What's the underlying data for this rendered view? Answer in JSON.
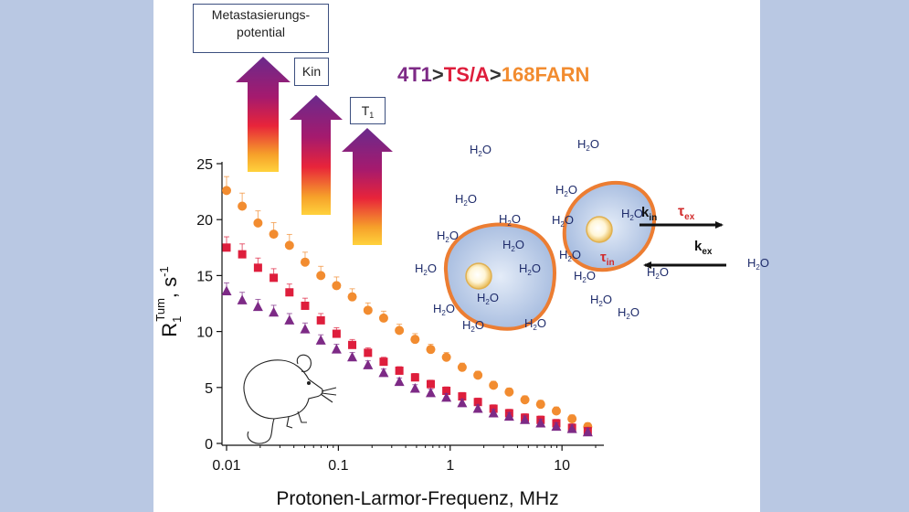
{
  "labels": {
    "metastasis_line1": "Metastasierungs-",
    "metastasis_line2": "potential",
    "kin_box": "Kin",
    "t1_box_main": "T",
    "t1_box_sub": "1"
  },
  "legend_order": {
    "part1": "4T1",
    "sep1": ">",
    "part2": "TS/A",
    "sep2": ">",
    "part3": "168FARN"
  },
  "colors": {
    "background": "#b9c8e3",
    "series_4t1": "#7d2a86",
    "series_tsa": "#de1e3c",
    "series_168farn": "#f28c30",
    "water": "#1f2c6b",
    "cell_border": "#ec7d32"
  },
  "diagram": {
    "water_label": "H2O",
    "water_main": "H",
    "water_sub": "2",
    "water_tail": "O",
    "k_in_main": "k",
    "k_in_sub": "in",
    "k_ex_main": "k",
    "k_ex_sub": "ex",
    "tau_ex_main": "τ",
    "tau_ex_sub": "ex",
    "tau_in_main": "τ",
    "tau_in_sub": "in"
  },
  "chart_data": {
    "type": "scatter",
    "xscale": "log",
    "xlabel": "Protonen-Larmor-Frequenz, MHz",
    "ylabel": {
      "main": "R",
      "sub": "1",
      "sup": "Tum",
      "unit": ", s",
      "unit_sup": "-1"
    },
    "xlim": [
      0.01,
      20
    ],
    "ylim": [
      0,
      25
    ],
    "x_ticks": [
      {
        "value": 0.01,
        "label": "0.01"
      },
      {
        "value": 0.1,
        "label": "0.1"
      },
      {
        "value": 1,
        "label": "1"
      },
      {
        "value": 10,
        "label": "10"
      }
    ],
    "y_ticks": [
      {
        "value": 0,
        "label": "0"
      },
      {
        "value": 5,
        "label": "5"
      },
      {
        "value": 10,
        "label": "10"
      },
      {
        "value": 15,
        "label": "15"
      },
      {
        "value": 20,
        "label": "20"
      },
      {
        "value": 25,
        "label": "25"
      }
    ],
    "series": [
      {
        "name": "168FARN",
        "marker": "circle",
        "color": "#f28c30",
        "x": [
          0.01,
          0.0138,
          0.0191,
          0.0264,
          0.0365,
          0.0504,
          0.0697,
          0.0963,
          0.133,
          0.184,
          0.254,
          0.351,
          0.485,
          0.67,
          0.925,
          1.28,
          1.77,
          2.44,
          3.37,
          4.66,
          6.44,
          8.9,
          12.3,
          17.0
        ],
        "y": [
          22.6,
          21.2,
          19.7,
          18.7,
          17.7,
          16.2,
          15.0,
          14.1,
          13.1,
          11.9,
          11.2,
          10.1,
          9.3,
          8.4,
          7.7,
          6.8,
          6.1,
          5.2,
          4.6,
          3.9,
          3.5,
          2.9,
          2.2,
          1.5
        ]
      },
      {
        "name": "TS/A",
        "marker": "square",
        "color": "#de1e3c",
        "x": [
          0.01,
          0.0138,
          0.0191,
          0.0264,
          0.0365,
          0.0504,
          0.0697,
          0.0963,
          0.133,
          0.184,
          0.254,
          0.351,
          0.485,
          0.67,
          0.925,
          1.28,
          1.77,
          2.44,
          3.37,
          4.66,
          6.44,
          8.9,
          12.3,
          17.0
        ],
        "y": [
          17.5,
          16.9,
          15.7,
          14.8,
          13.5,
          12.3,
          11.0,
          9.8,
          8.8,
          8.1,
          7.3,
          6.5,
          5.9,
          5.3,
          4.7,
          4.2,
          3.7,
          3.1,
          2.7,
          2.3,
          2.1,
          1.8,
          1.4,
          1.1
        ]
      },
      {
        "name": "4T1",
        "marker": "triangle",
        "color": "#7d2a86",
        "x": [
          0.01,
          0.0138,
          0.0191,
          0.0264,
          0.0365,
          0.0504,
          0.0697,
          0.0963,
          0.133,
          0.184,
          0.254,
          0.351,
          0.485,
          0.67,
          0.925,
          1.28,
          1.77,
          2.44,
          3.37,
          4.66,
          6.44,
          8.9,
          12.3,
          17.0
        ],
        "y": [
          13.6,
          12.8,
          12.2,
          11.7,
          11.0,
          10.2,
          9.2,
          8.4,
          7.7,
          7.0,
          6.3,
          5.5,
          4.9,
          4.5,
          4.1,
          3.6,
          3.1,
          2.7,
          2.4,
          2.1,
          1.8,
          1.5,
          1.3,
          1.0
        ]
      }
    ]
  }
}
